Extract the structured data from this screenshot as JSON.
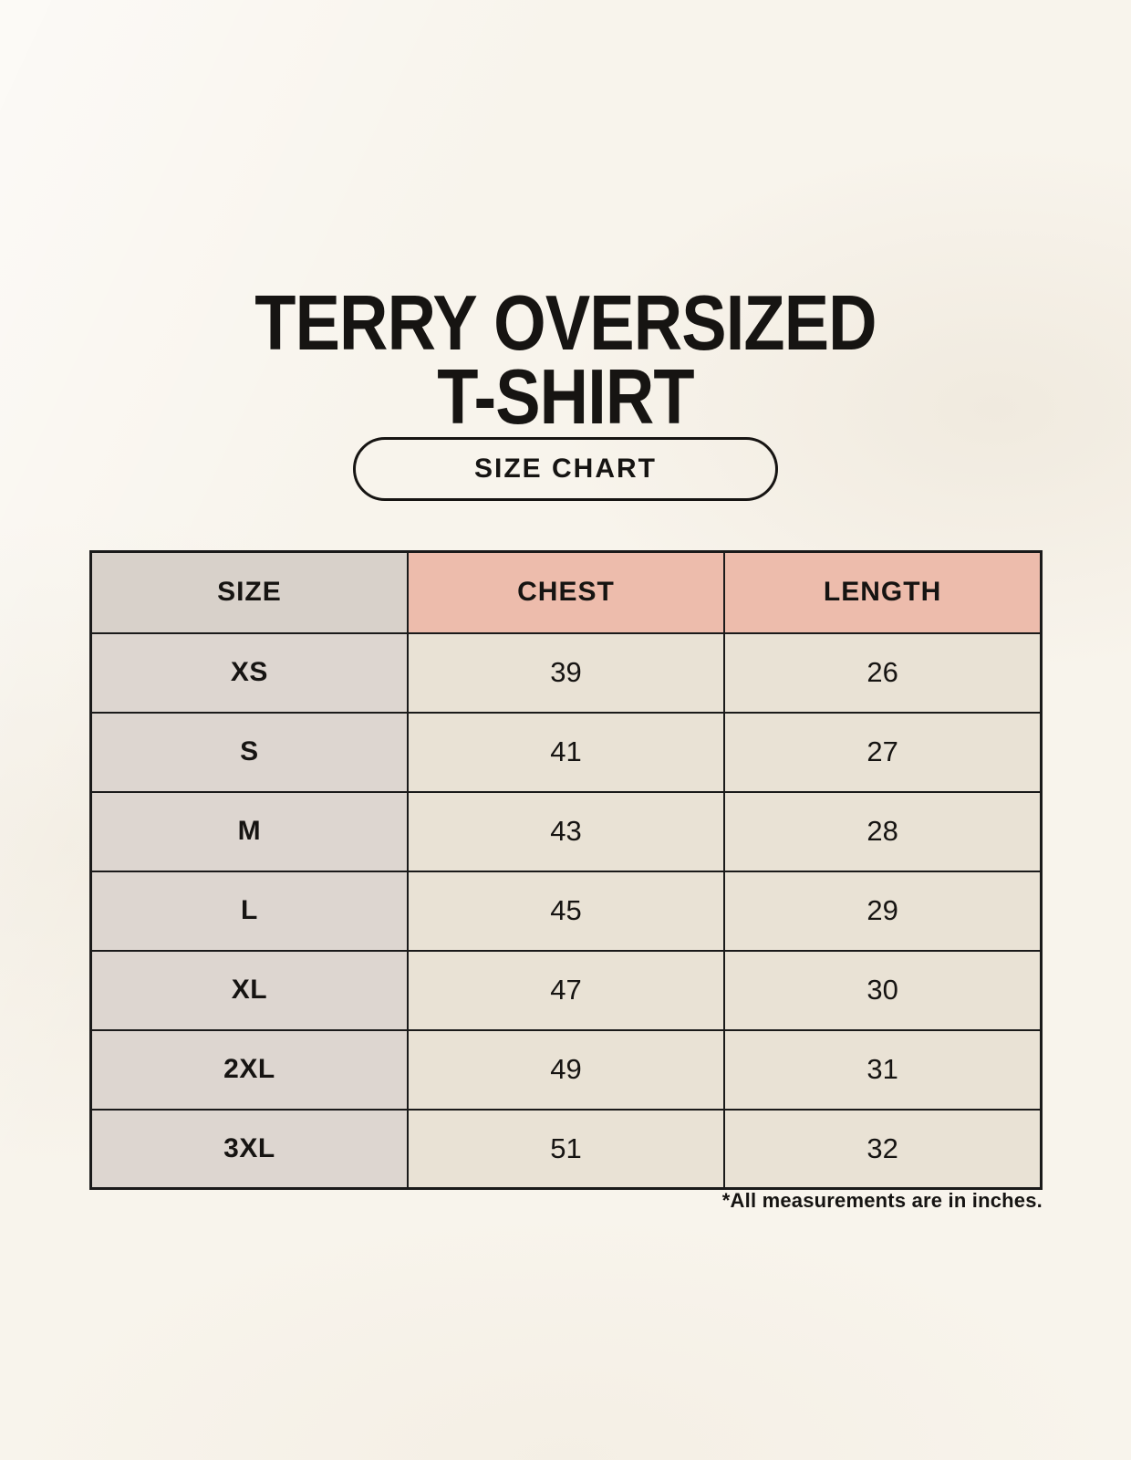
{
  "title": {
    "line1": "TERRY OVERSIZED",
    "line2": "T-SHIRT"
  },
  "badge": {
    "label": "SIZE CHART"
  },
  "chart_data": {
    "type": "table",
    "title": "TERRY OVERSIZED T-SHIRT",
    "columns": [
      "SIZE",
      "CHEST",
      "LENGTH"
    ],
    "rows": [
      [
        "XS",
        39,
        26
      ],
      [
        "S",
        41,
        27
      ],
      [
        "M",
        43,
        28
      ],
      [
        "L",
        45,
        29
      ],
      [
        "XL",
        47,
        30
      ],
      [
        "2XL",
        49,
        31
      ],
      [
        "3XL",
        51,
        32
      ]
    ],
    "units": "inches",
    "note": "*All measurements are in inches."
  },
  "footnote": {
    "text": "*All measurements are in inches."
  },
  "colors": {
    "background": "#f8f4ec",
    "header_size_bg": "#d8d1ca",
    "header_accent_bg": "#edbcac",
    "row_label_bg": "#ddd6d0",
    "value_cell_bg": "#e9e2d5",
    "border": "#1a1a1a",
    "text": "#161412"
  }
}
